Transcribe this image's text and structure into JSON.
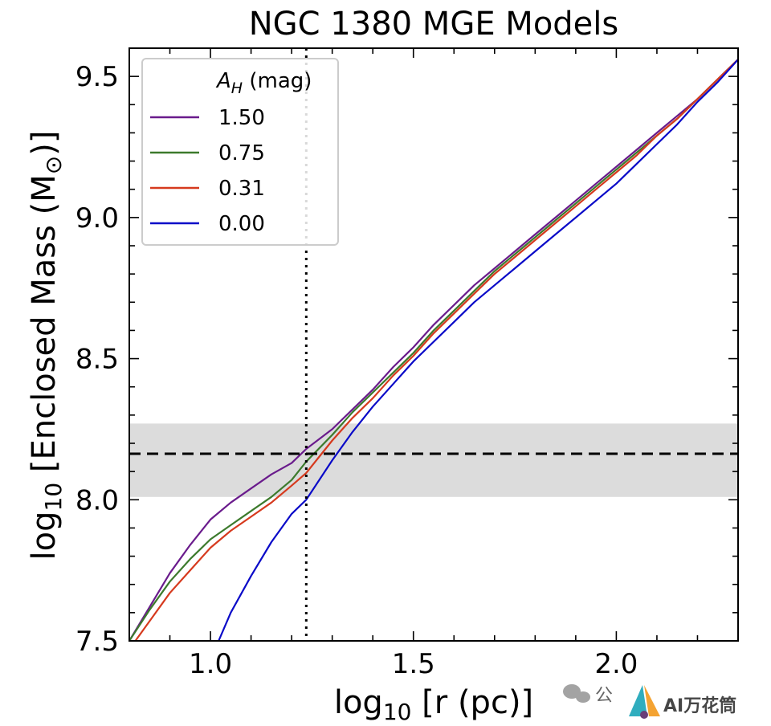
{
  "chart_data": {
    "type": "line",
    "title": "NGC 1380 MGE Models",
    "xlabel_main": "log",
    "xlabel_sub": "10",
    "xlabel_tail": " [r (pc)]",
    "ylabel_main": "log",
    "ylabel_sub": "10",
    "ylabel_tail": " [Enclosed Mass (M",
    "ylabel_sun": "⊙",
    "ylabel_end": ")]",
    "xlim": [
      0.8,
      2.3
    ],
    "ylim": [
      7.5,
      9.6
    ],
    "xticks": [
      {
        "value": 1.0,
        "label": "1.0"
      },
      {
        "value": 1.5,
        "label": "1.5"
      },
      {
        "value": 2.0,
        "label": "2.0"
      }
    ],
    "yticks": [
      {
        "value": 7.5,
        "label": "7.5"
      },
      {
        "value": 8.0,
        "label": "8.0"
      },
      {
        "value": 8.5,
        "label": "8.5"
      },
      {
        "value": 9.0,
        "label": "9.0"
      },
      {
        "value": 9.5,
        "label": "9.5"
      }
    ],
    "legend": {
      "title_main": "A",
      "title_sub": "H",
      "title_tail": " (mag)",
      "position": "upper-left"
    },
    "band": {
      "ymin": 8.01,
      "ymax": 8.27,
      "color": "#dcdcdc"
    },
    "hline": {
      "y": 8.163
    },
    "vline": {
      "x": 1.236
    },
    "series": [
      {
        "name": "1.50",
        "color": "#6a1b8c",
        "x": [
          0.8,
          0.85,
          0.9,
          0.95,
          1.0,
          1.05,
          1.1,
          1.15,
          1.2,
          1.236,
          1.3,
          1.35,
          1.4,
          1.45,
          1.5,
          1.55,
          1.6,
          1.65,
          1.7,
          1.75,
          1.8,
          1.85,
          1.9,
          1.95,
          2.0,
          2.05,
          2.1,
          2.15,
          2.2,
          2.25,
          2.3
        ],
        "y": [
          7.5,
          7.62,
          7.74,
          7.84,
          7.93,
          7.99,
          8.04,
          8.09,
          8.13,
          8.18,
          8.25,
          8.32,
          8.39,
          8.47,
          8.54,
          8.62,
          8.69,
          8.76,
          8.82,
          8.88,
          8.94,
          9.0,
          9.06,
          9.12,
          9.18,
          9.24,
          9.3,
          9.36,
          9.42,
          9.49,
          9.56
        ]
      },
      {
        "name": "0.75",
        "color": "#3c7a2c",
        "x": [
          0.8,
          0.85,
          0.9,
          0.95,
          1.0,
          1.05,
          1.1,
          1.15,
          1.2,
          1.236,
          1.3,
          1.35,
          1.4,
          1.45,
          1.5,
          1.55,
          1.6,
          1.65,
          1.7,
          1.75,
          1.8,
          1.85,
          1.9,
          1.95,
          2.0,
          2.05,
          2.1,
          2.15,
          2.2,
          2.25,
          2.3
        ],
        "y": [
          7.5,
          7.61,
          7.71,
          7.79,
          7.86,
          7.91,
          7.96,
          8.01,
          8.07,
          8.135,
          8.23,
          8.31,
          8.38,
          8.45,
          8.52,
          8.6,
          8.67,
          8.74,
          8.81,
          8.87,
          8.93,
          8.99,
          9.05,
          9.11,
          9.17,
          9.23,
          9.29,
          9.35,
          9.42,
          9.49,
          9.56
        ]
      },
      {
        "name": "0.31",
        "color": "#d63a1e",
        "x": [
          0.8,
          0.85,
          0.9,
          0.95,
          1.0,
          1.05,
          1.1,
          1.15,
          1.2,
          1.236,
          1.3,
          1.35,
          1.4,
          1.45,
          1.5,
          1.55,
          1.6,
          1.65,
          1.7,
          1.75,
          1.8,
          1.85,
          1.9,
          1.95,
          2.0,
          2.05,
          2.1,
          2.15,
          2.2,
          2.25,
          2.3
        ],
        "y": [
          7.47,
          7.57,
          7.67,
          7.75,
          7.83,
          7.89,
          7.94,
          7.99,
          8.05,
          8.095,
          8.21,
          8.29,
          8.36,
          8.44,
          8.51,
          8.59,
          8.66,
          8.73,
          8.8,
          8.86,
          8.92,
          8.98,
          9.04,
          9.1,
          9.16,
          9.22,
          9.29,
          9.35,
          9.42,
          9.49,
          9.56
        ]
      },
      {
        "name": "0.00",
        "color": "#0a0ac8",
        "x": [
          1.02,
          1.05,
          1.1,
          1.15,
          1.2,
          1.236,
          1.3,
          1.35,
          1.4,
          1.45,
          1.5,
          1.55,
          1.6,
          1.65,
          1.7,
          1.75,
          1.8,
          1.85,
          1.9,
          1.95,
          2.0,
          2.05,
          2.1,
          2.15,
          2.2,
          2.25,
          2.3
        ],
        "y": [
          7.5,
          7.6,
          7.73,
          7.85,
          7.95,
          8.0,
          8.14,
          8.24,
          8.33,
          8.41,
          8.49,
          8.56,
          8.63,
          8.7,
          8.76,
          8.82,
          8.88,
          8.94,
          9.0,
          9.06,
          9.12,
          9.19,
          9.26,
          9.33,
          9.41,
          9.48,
          9.56
        ]
      }
    ]
  },
  "watermark": {
    "text": "公",
    "brand": "AI万花筒"
  }
}
